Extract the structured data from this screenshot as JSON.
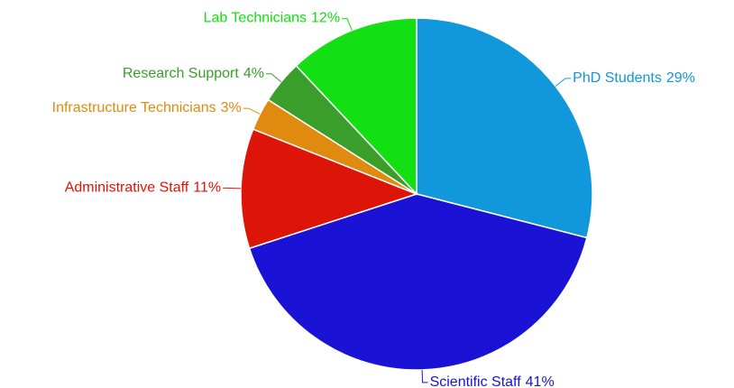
{
  "chart_data": {
    "type": "pie",
    "categories": [
      "PhD Students",
      "Scientific Staff",
      "Administrative Staff",
      "Infrastructure Technicians",
      "Research Support",
      "Lab Technicians"
    ],
    "values": [
      29,
      41,
      11,
      3,
      4,
      12
    ],
    "value_labels": [
      "29%",
      "41%",
      "11%",
      "3%",
      "4%",
      "12%"
    ],
    "colors": [
      "#1197dc",
      "#1a12d4",
      "#dd1408",
      "#e08a10",
      "#3a9e2a",
      "#12e012"
    ]
  }
}
